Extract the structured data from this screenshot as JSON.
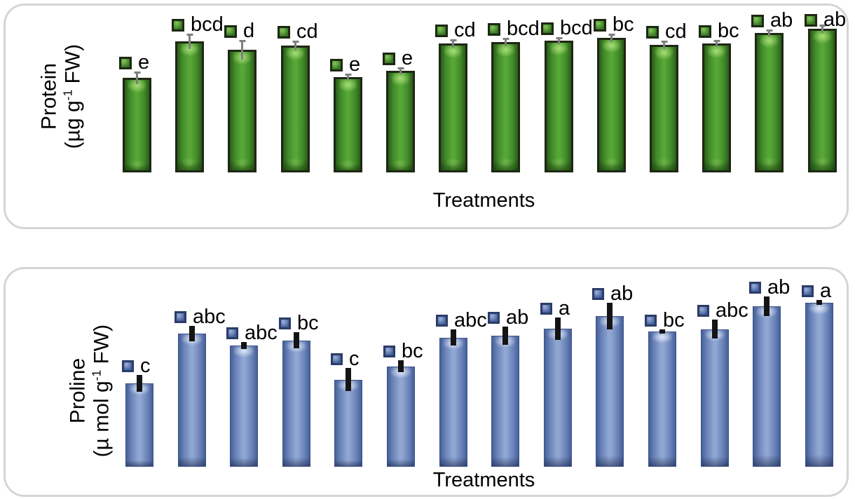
{
  "chart_data": [
    {
      "type": "bar",
      "panel": "top",
      "title": "",
      "ylabel": "Protein (µg g⁻¹ FW)",
      "ylabel_parts": {
        "line1": "Protein",
        "line2_prefix": "(µg g",
        "line2_sup": "-1",
        "line2_suffix": " FW)"
      },
      "xlabel": "Treatments",
      "n_bars": 14,
      "axis": {
        "y_tick_labels_visible": false,
        "x_tick_labels_visible": false,
        "gridlines": false
      },
      "legend_position": "per-bar swatch beside significance letter above each bar",
      "significance_letters": [
        "e",
        "bcd",
        "d",
        "cd",
        "e",
        "e",
        "cd",
        "bcd",
        "bcd",
        "bc",
        "cd",
        "bc",
        "ab",
        "ab"
      ],
      "bar_heights_pct_of_plot": [
        56.7,
        78.6,
        73.5,
        76.1,
        57.1,
        60.9,
        77.3,
        78.2,
        79.0,
        80.7,
        76.5,
        77.3,
        83.6,
        86.1
      ],
      "error_bar_total_pct_of_plot": [
        7.6,
        9.2,
        11.8,
        5.9,
        4.2,
        4.2,
        5.0,
        5.0,
        4.2,
        5.0,
        5.0,
        4.2,
        4.2,
        5.0
      ],
      "colors": {
        "bar_mid": "#57a737",
        "bar_edge": "#2b5c1b",
        "bar_border": "#1d2814",
        "error_bar": "#7f7f7f"
      }
    },
    {
      "type": "bar",
      "panel": "bottom",
      "title": "",
      "ylabel": "Proline (µ mol g⁻¹ FW)",
      "ylabel_parts": {
        "line1": "Proline",
        "line2_prefix": "(µ mol g",
        "line2_sup": "-1",
        "line2_suffix": " FW)"
      },
      "xlabel": "Treatments",
      "n_bars": 14,
      "axis": {
        "y_tick_labels_visible": false,
        "x_tick_labels_visible": false,
        "gridlines": false
      },
      "legend_position": "per-bar swatch beside significance letter above each bar",
      "significance_letters": [
        "c",
        "abc",
        "abc",
        "bc",
        "c",
        "bc",
        "abc",
        "ab",
        "a",
        "ab",
        "bc",
        "abc",
        "ab",
        "a"
      ],
      "bar_heights_pct_of_plot": [
        42.2,
        67.4,
        61.3,
        63.8,
        44.0,
        50.7,
        65.2,
        66.3,
        69.9,
        76.2,
        68.4,
        69.5,
        81.2,
        83.0
      ],
      "error_bar_total_pct_of_plot": [
        8.5,
        7.8,
        3.5,
        8.2,
        11.7,
        6.0,
        8.2,
        9.2,
        11.3,
        13.5,
        2.1,
        9.6,
        9.9,
        2.5
      ],
      "colors": {
        "bar_mid": "#90a7d3",
        "bar_edge": "#45609b",
        "bar_border": "#3d5386",
        "error_bar": "#141414"
      }
    }
  ]
}
